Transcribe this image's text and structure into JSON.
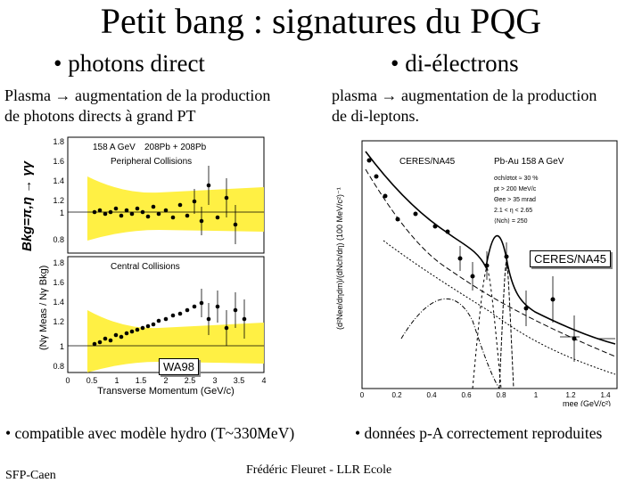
{
  "title": "Petit bang : signatures du PQG",
  "left": {
    "heading": "• photons direct",
    "text_line1": "Plasma → augmentation de la production",
    "text_line2": "de photons directs à grand PT",
    "side_label": "Bkg=π,η → γγ",
    "panel_label": "WA98",
    "plot": {
      "top_title": "158 A GeV",
      "top_reaction": "208Pb + 208Pb",
      "top_subtitle": "Peripheral Collisions",
      "bottom_subtitle": "Central Collisions",
      "ylabel": "(Nγ Meas / Nγ Bkg)",
      "xlabel": "Transverse Momentum (GeV/c)",
      "x_ticks": [
        "0",
        "0.5",
        "1",
        "1.5",
        "2",
        "2.5",
        "3",
        "3.5",
        "4"
      ],
      "y_ticks_top": [
        "1.8",
        "1.6",
        "1.4",
        "1.2",
        "1",
        "0.8"
      ],
      "y_ticks_bottom": [
        "1.8",
        "1.6",
        "1.4",
        "1.2",
        "1",
        "0.8"
      ]
    }
  },
  "right": {
    "heading": "• di-électrons",
    "text_line1": "plasma → augmentation de la production",
    "text_line2": "de di-leptons.",
    "panel_label": "CERES/NA45",
    "plot": {
      "tag": "CERES/NA45",
      "reaction": "Pb-Au 158 A GeV",
      "cuts": [
        "σch/σtot ≈ 30 %",
        "pt > 200 MeV/c",
        "Θee > 35 mrad",
        "2.1 < η < 2.65",
        "⟨Nch⟩ = 250"
      ],
      "ylabel": "(d²Nee/dηdm)/(dNch/dη) (100 MeV/c²)⁻¹",
      "xlabel": "mee (GeV/c²)",
      "x_ticks": [
        "0",
        "0.2",
        "0.4",
        "0.6",
        "0.8",
        "1",
        "1.2",
        "1.4"
      ]
    }
  },
  "conclusion_left": "• compatible avec modèle hydro (T~330MeV)",
  "conclusion_right": "• données p-A correctement reproduites",
  "footer_left": "SFP-Caen",
  "footer_center": "Frédéric Fleuret - LLR Ecole"
}
